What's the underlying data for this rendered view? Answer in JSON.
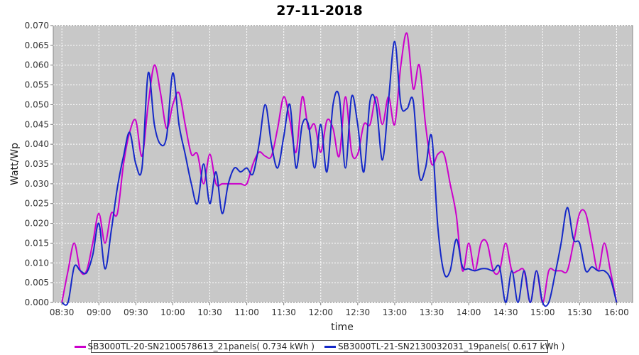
{
  "chart_data": {
    "type": "line",
    "title": "27-11-2018",
    "xlabel": "time",
    "ylabel": "Watt/Wp",
    "xlim": [
      "08:23",
      "16:13"
    ],
    "ylim": [
      0,
      0.07
    ],
    "x_ticks": [
      "08:30",
      "09:00",
      "09:30",
      "10:00",
      "10:30",
      "11:00",
      "11:30",
      "12:00",
      "12:30",
      "13:00",
      "13:30",
      "14:00",
      "14:30",
      "15:00",
      "15:30",
      "16:00"
    ],
    "y_ticks": [
      "0.000",
      "0.005",
      "0.010",
      "0.015",
      "0.020",
      "0.025",
      "0.030",
      "0.035",
      "0.040",
      "0.045",
      "0.050",
      "0.055",
      "0.060",
      "0.065",
      "0.070"
    ],
    "grid": true,
    "legend_position": "bottom",
    "series": [
      {
        "name": "SB3000TL-20-SN2100578613_21panels( 0.734 kWh )",
        "color": "#cc00cc",
        "points": [
          [
            "08:30",
            0.0
          ],
          [
            "08:35",
            0.008
          ],
          [
            "08:40",
            0.015
          ],
          [
            "08:45",
            0.008
          ],
          [
            "08:50",
            0.008
          ],
          [
            "08:55",
            0.015
          ],
          [
            "09:00",
            0.0225
          ],
          [
            "09:05",
            0.015
          ],
          [
            "09:10",
            0.0225
          ],
          [
            "09:15",
            0.0225
          ],
          [
            "09:20",
            0.035
          ],
          [
            "09:25",
            0.043
          ],
          [
            "09:30",
            0.046
          ],
          [
            "09:35",
            0.037
          ],
          [
            "09:40",
            0.05
          ],
          [
            "09:45",
            0.06
          ],
          [
            "09:50",
            0.053
          ],
          [
            "09:55",
            0.044
          ],
          [
            "10:00",
            0.05
          ],
          [
            "10:05",
            0.053
          ],
          [
            "10:10",
            0.045
          ],
          [
            "10:15",
            0.0375
          ],
          [
            "10:20",
            0.0375
          ],
          [
            "10:25",
            0.03
          ],
          [
            "10:30",
            0.0375
          ],
          [
            "10:35",
            0.03
          ],
          [
            "10:40",
            0.03
          ],
          [
            "10:45",
            0.03
          ],
          [
            "10:50",
            0.03
          ],
          [
            "10:55",
            0.03
          ],
          [
            "11:00",
            0.03
          ],
          [
            "11:05",
            0.035
          ],
          [
            "11:10",
            0.038
          ],
          [
            "11:15",
            0.037
          ],
          [
            "11:20",
            0.037
          ],
          [
            "11:25",
            0.044
          ],
          [
            "11:30",
            0.052
          ],
          [
            "11:35",
            0.046
          ],
          [
            "11:40",
            0.038
          ],
          [
            "11:45",
            0.052
          ],
          [
            "11:50",
            0.044
          ],
          [
            "11:55",
            0.045
          ],
          [
            "12:00",
            0.038
          ],
          [
            "12:05",
            0.046
          ],
          [
            "12:10",
            0.044
          ],
          [
            "12:15",
            0.037
          ],
          [
            "12:20",
            0.052
          ],
          [
            "12:25",
            0.038
          ],
          [
            "12:30",
            0.0375
          ],
          [
            "12:35",
            0.045
          ],
          [
            "12:40",
            0.045
          ],
          [
            "12:45",
            0.052
          ],
          [
            "12:50",
            0.045
          ],
          [
            "12:55",
            0.052
          ],
          [
            "13:00",
            0.045
          ],
          [
            "13:05",
            0.06
          ],
          [
            "13:10",
            0.068
          ],
          [
            "13:15",
            0.054
          ],
          [
            "13:20",
            0.06
          ],
          [
            "13:25",
            0.045
          ],
          [
            "13:30",
            0.035
          ],
          [
            "13:35",
            0.0375
          ],
          [
            "13:40",
            0.0375
          ],
          [
            "13:45",
            0.03
          ],
          [
            "13:50",
            0.022
          ],
          [
            "13:55",
            0.008
          ],
          [
            "14:00",
            0.015
          ],
          [
            "14:05",
            0.008
          ],
          [
            "14:10",
            0.015
          ],
          [
            "14:15",
            0.015
          ],
          [
            "14:20",
            0.008
          ],
          [
            "14:25",
            0.008
          ],
          [
            "14:30",
            0.015
          ],
          [
            "14:35",
            0.008
          ],
          [
            "14:40",
            0.008
          ],
          [
            "14:45",
            0.008
          ],
          [
            "14:50",
            0.0
          ],
          [
            "14:55",
            0.008
          ],
          [
            "15:00",
            0.0
          ],
          [
            "15:05",
            0.008
          ],
          [
            "15:10",
            0.008
          ],
          [
            "15:15",
            0.008
          ],
          [
            "15:20",
            0.008
          ],
          [
            "15:25",
            0.015
          ],
          [
            "15:30",
            0.0225
          ],
          [
            "15:35",
            0.0225
          ],
          [
            "15:40",
            0.015
          ],
          [
            "15:45",
            0.008
          ],
          [
            "15:50",
            0.015
          ],
          [
            "15:55",
            0.008
          ],
          [
            "16:00",
            0.0
          ]
        ]
      },
      {
        "name": "SB3000TL-21-SN2130032031_19panels( 0.617 kWh )",
        "color": "#1428c8",
        "points": [
          [
            "08:30",
            0.0
          ],
          [
            "08:35",
            0.0
          ],
          [
            "08:40",
            0.009
          ],
          [
            "08:45",
            0.008
          ],
          [
            "08:50",
            0.0075
          ],
          [
            "08:55",
            0.012
          ],
          [
            "09:00",
            0.02
          ],
          [
            "09:05",
            0.0085
          ],
          [
            "09:10",
            0.018
          ],
          [
            "09:15",
            0.029
          ],
          [
            "09:20",
            0.037
          ],
          [
            "09:25",
            0.043
          ],
          [
            "09:30",
            0.035
          ],
          [
            "09:35",
            0.034
          ],
          [
            "09:40",
            0.058
          ],
          [
            "09:45",
            0.045
          ],
          [
            "09:50",
            0.04
          ],
          [
            "09:55",
            0.042
          ],
          [
            "10:00",
            0.058
          ],
          [
            "10:05",
            0.045
          ],
          [
            "10:10",
            0.0375
          ],
          [
            "10:15",
            0.03
          ],
          [
            "10:20",
            0.025
          ],
          [
            "10:25",
            0.035
          ],
          [
            "10:30",
            0.025
          ],
          [
            "10:35",
            0.033
          ],
          [
            "10:40",
            0.0225
          ],
          [
            "10:45",
            0.03
          ],
          [
            "10:50",
            0.034
          ],
          [
            "10:55",
            0.033
          ],
          [
            "11:00",
            0.034
          ],
          [
            "11:05",
            0.0325
          ],
          [
            "11:10",
            0.04
          ],
          [
            "11:15",
            0.05
          ],
          [
            "11:20",
            0.04
          ],
          [
            "11:25",
            0.034
          ],
          [
            "11:30",
            0.042
          ],
          [
            "11:35",
            0.05
          ],
          [
            "11:40",
            0.034
          ],
          [
            "11:45",
            0.045
          ],
          [
            "11:50",
            0.045
          ],
          [
            "11:55",
            0.034
          ],
          [
            "12:00",
            0.045
          ],
          [
            "12:05",
            0.033
          ],
          [
            "12:10",
            0.05
          ],
          [
            "12:15",
            0.052
          ],
          [
            "12:20",
            0.034
          ],
          [
            "12:25",
            0.052
          ],
          [
            "12:30",
            0.045
          ],
          [
            "12:35",
            0.033
          ],
          [
            "12:40",
            0.051
          ],
          [
            "12:45",
            0.05
          ],
          [
            "12:50",
            0.036
          ],
          [
            "12:55",
            0.051
          ],
          [
            "13:00",
            0.066
          ],
          [
            "13:05",
            0.05
          ],
          [
            "13:10",
            0.049
          ],
          [
            "13:15",
            0.051
          ],
          [
            "13:20",
            0.032
          ],
          [
            "13:25",
            0.034
          ],
          [
            "13:30",
            0.042
          ],
          [
            "13:35",
            0.019
          ],
          [
            "13:40",
            0.0075
          ],
          [
            "13:45",
            0.008
          ],
          [
            "13:50",
            0.016
          ],
          [
            "13:55",
            0.009
          ],
          [
            "14:00",
            0.0085
          ],
          [
            "14:05",
            0.008
          ],
          [
            "14:10",
            0.0085
          ],
          [
            "14:15",
            0.0085
          ],
          [
            "14:20",
            0.008
          ],
          [
            "14:25",
            0.009
          ],
          [
            "14:30",
            0.0
          ],
          [
            "14:35",
            0.008
          ],
          [
            "14:40",
            0.0
          ],
          [
            "14:45",
            0.008
          ],
          [
            "14:50",
            0.0
          ],
          [
            "14:55",
            0.008
          ],
          [
            "15:00",
            0.0
          ],
          [
            "15:05",
            0.0
          ],
          [
            "15:10",
            0.007
          ],
          [
            "15:15",
            0.015
          ],
          [
            "15:20",
            0.024
          ],
          [
            "15:25",
            0.016
          ],
          [
            "15:30",
            0.015
          ],
          [
            "15:35",
            0.008
          ],
          [
            "15:40",
            0.009
          ],
          [
            "15:45",
            0.008
          ],
          [
            "15:50",
            0.008
          ],
          [
            "15:55",
            0.006
          ],
          [
            "16:00",
            0.0
          ]
        ]
      }
    ]
  }
}
